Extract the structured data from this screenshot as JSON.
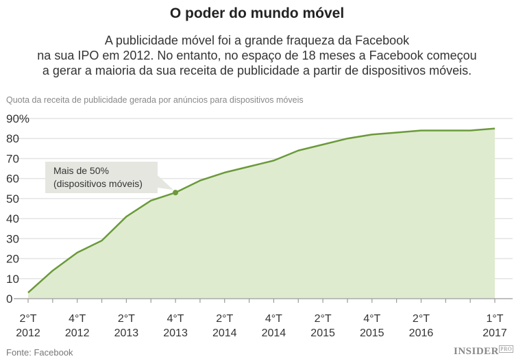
{
  "title": "O poder do mundo móvel",
  "subtitle": [
    "A publicidade móvel foi a grande fraqueza da Facebook",
    "na sua IPO em 2012. No entanto, no espaço de 18 meses a Facebook começou",
    "a gerar a maioria da sua receita de publicidade a partir de dispositivos móveis."
  ],
  "source": "Fonte: Facebook",
  "logo": {
    "text": "INSIDER",
    "sub": "PRO"
  },
  "chart_data": {
    "type": "area",
    "ylabel": "Quota da receita de publicidade gerada por anúncios para dispositivos móveis",
    "ylim": [
      0,
      90
    ],
    "yticks": [
      "0",
      "10",
      "20",
      "30",
      "40",
      "50",
      "60",
      "70",
      "80",
      "90%"
    ],
    "x": [
      "2°T 2012",
      "3°T 2012",
      "4°T 2012",
      "1°T 2013",
      "2°T 2013",
      "3°T 2013",
      "4°T 2013",
      "1°T 2014",
      "2°T 2014",
      "3°T 2014",
      "4°T 2014",
      "1°T 2015",
      "2°T 2015",
      "3°T 2015",
      "4°T 2015",
      "1°T 2016",
      "2°T 2016",
      "3°T 2016",
      "4°T 2016",
      "1°T 2017"
    ],
    "values": [
      3,
      14,
      23,
      29,
      41,
      49,
      53,
      59,
      63,
      66,
      69,
      74,
      77,
      80,
      82,
      83,
      84,
      84,
      84,
      85
    ],
    "xtick_labels": [
      {
        "index": 0,
        "q": "2°T",
        "y": "2012"
      },
      {
        "index": 2,
        "q": "4°T",
        "y": "2012"
      },
      {
        "index": 4,
        "q": "2°T",
        "y": "2013"
      },
      {
        "index": 6,
        "q": "4°T",
        "y": "2013"
      },
      {
        "index": 8,
        "q": "2°T",
        "y": "2014"
      },
      {
        "index": 10,
        "q": "4°T",
        "y": "2014"
      },
      {
        "index": 12,
        "q": "2°T",
        "y": "2015"
      },
      {
        "index": 14,
        "q": "4°T",
        "y": "2015"
      },
      {
        "index": 16,
        "q": "2°T",
        "y": "2016"
      },
      {
        "index": 19,
        "q": "1°T",
        "y": "2017"
      }
    ],
    "annotation": {
      "index": 6,
      "lines": [
        "Mais de 50%",
        "(dispositivos móveis)"
      ]
    },
    "grid": true,
    "colors": {
      "line": "#6a9a3a",
      "fill": "#dfebcf",
      "grid": "#e3e3e3",
      "annotation_bg": "#e6e6e1"
    }
  }
}
